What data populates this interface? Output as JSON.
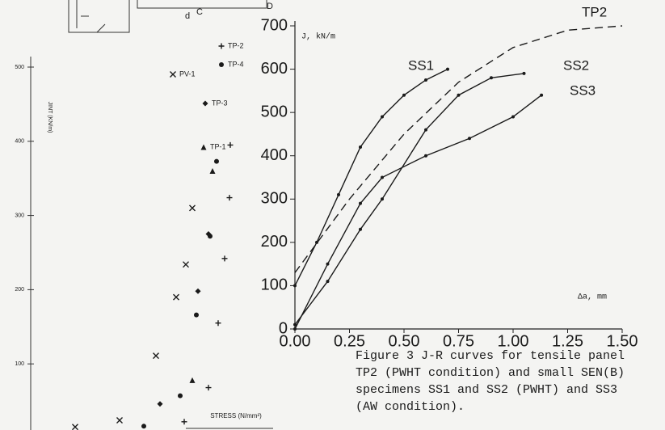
{
  "fragments": [
    "d",
    "C",
    "D"
  ],
  "chart_data": [
    {
      "type": "scatter",
      "y_label": "JINT (KN/m)",
      "x_label": "STRESS (N/mm²)",
      "ylim": [
        0,
        500
      ],
      "yticks": [
        100,
        200,
        300,
        400,
        500
      ],
      "xlim": [
        0,
        300
      ],
      "series": [
        {
          "name": "TP-2",
          "marker": "plus",
          "color": "#1a1a1a",
          "x": [
            190,
            220,
            232,
            240,
            246,
            247
          ],
          "values": [
            22,
            68,
            155,
            242,
            324,
            395
          ]
        },
        {
          "name": "TP-4",
          "marker": "dot",
          "color": "#1a1a1a",
          "x": [
            140,
            185,
            205,
            222,
            230
          ],
          "values": [
            16,
            57,
            166,
            272,
            373
          ]
        },
        {
          "name": "PV-1",
          "marker": "cross",
          "color": "#1a1a1a",
          "x": [
            55,
            110,
            155,
            180,
            192,
            200
          ],
          "values": [
            15,
            24,
            111,
            190,
            234,
            310
          ]
        },
        {
          "name": "TP-3",
          "marker": "diamond",
          "color": "#1a1a1a",
          "x": [
            160,
            207,
            220
          ],
          "values": [
            46,
            198,
            275
          ]
        },
        {
          "name": "TP-1",
          "marker": "triangle",
          "color": "#1a1a1a",
          "x": [
            200,
            225
          ],
          "values": [
            78,
            360
          ]
        }
      ]
    },
    {
      "type": "line",
      "y_label": "J, kN/m",
      "x_label": "Δa, mm",
      "ylim": [
        0,
        700
      ],
      "yticks": [
        0,
        100,
        200,
        300,
        400,
        500,
        600,
        700
      ],
      "xlim": [
        0,
        1.5
      ],
      "xticks": [
        {
          "value": 0,
          "label": "0.00"
        },
        {
          "value": 0.25,
          "label": "0.25"
        },
        {
          "value": 0.5,
          "label": "0.50"
        },
        {
          "value": 0.75,
          "label": "0.75"
        },
        {
          "value": 1.0,
          "label": "1.00"
        },
        {
          "value": 1.25,
          "label": "1.25"
        },
        {
          "value": 1.5,
          "label": "1.50"
        }
      ],
      "series": [
        {
          "name": "SS1",
          "color": "#1a1a1a",
          "dashed": false,
          "x": [
            0,
            0.1,
            0.2,
            0.3,
            0.4,
            0.5,
            0.6,
            0.7
          ],
          "values": [
            100,
            200,
            310,
            420,
            490,
            540,
            575,
            600
          ]
        },
        {
          "name": "SS2",
          "color": "#1a1a1a",
          "dashed": false,
          "x": [
            0,
            0.15,
            0.3,
            0.4,
            0.6,
            0.75,
            0.9,
            1.05
          ],
          "values": [
            10,
            110,
            230,
            300,
            460,
            540,
            580,
            590
          ]
        },
        {
          "name": "SS3",
          "color": "#1a1a1a",
          "dashed": false,
          "x": [
            0,
            0.15,
            0.3,
            0.4,
            0.6,
            0.8,
            1.0,
            1.13
          ],
          "values": [
            0,
            150,
            290,
            350,
            400,
            440,
            490,
            540
          ]
        },
        {
          "name": "TP2",
          "color": "#1a1a1a",
          "dashed": true,
          "x": [
            0,
            0.25,
            0.5,
            0.75,
            1.0,
            1.25,
            1.5
          ],
          "values": [
            130,
            300,
            450,
            570,
            650,
            690,
            700
          ]
        }
      ]
    }
  ],
  "caption": [
    "Figure 3 J-R curves for tensile panel",
    "TP2 (PWHT condition) and small SEN(B)",
    "specimens SS1 and SS2 (PWHT) and SS3",
    "(AW condition)."
  ]
}
